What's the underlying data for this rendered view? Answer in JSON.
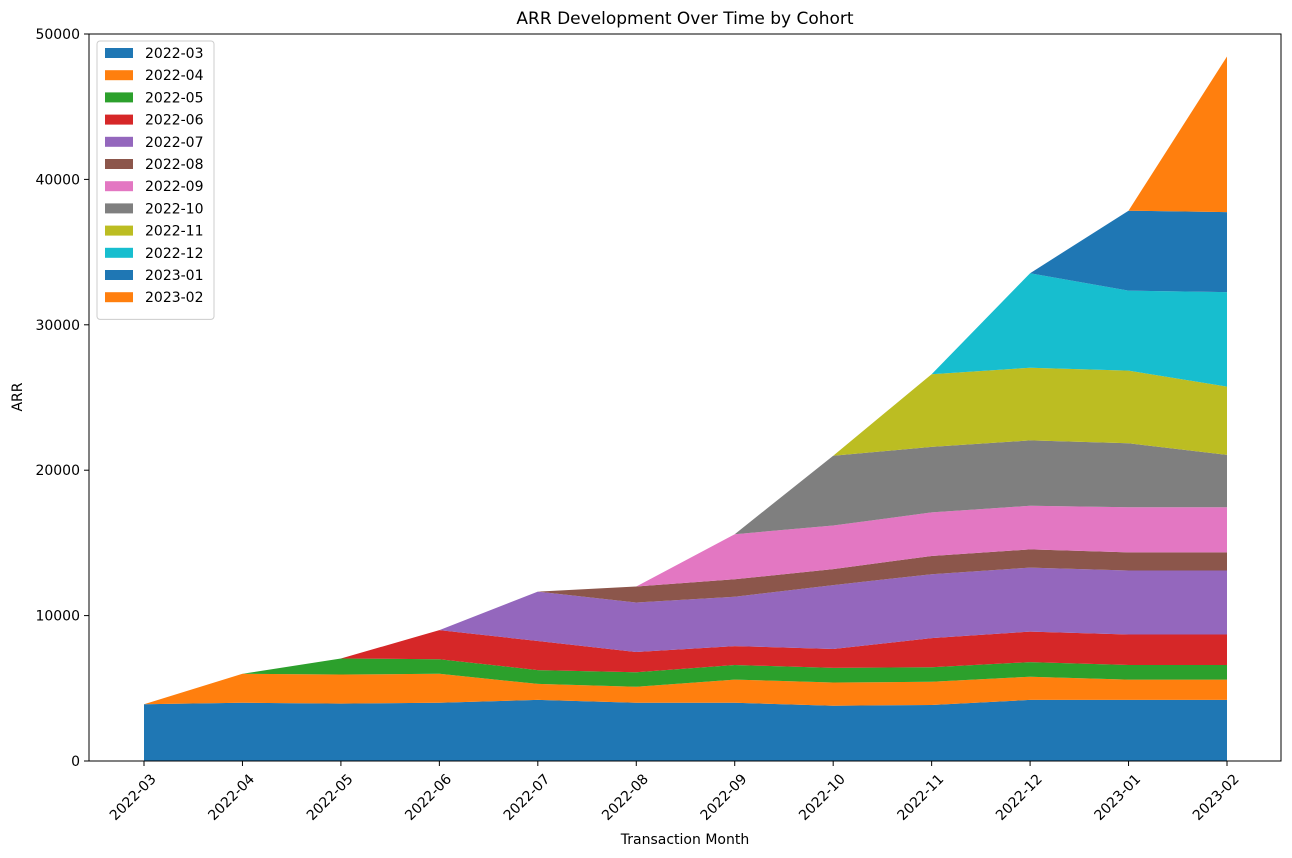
{
  "chart_data": {
    "type": "area",
    "stacked": true,
    "title": "ARR Development Over Time by Cohort",
    "xlabel": "Transaction Month",
    "ylabel": "ARR",
    "ylim": [
      0,
      50000
    ],
    "yticks": [
      0,
      10000,
      20000,
      30000,
      40000,
      50000
    ],
    "grid": false,
    "legend_position": "top-left",
    "x": [
      "2022-03",
      "2022-04",
      "2022-05",
      "2022-06",
      "2022-07",
      "2022-08",
      "2022-09",
      "2022-10",
      "2022-11",
      "2022-12",
      "2023-01",
      "2023-02"
    ],
    "series": [
      {
        "name": "2022-03",
        "color": "#1f77b4",
        "values": [
          3900,
          4000,
          3950,
          4000,
          4200,
          4000,
          4000,
          3800,
          3850,
          4200,
          4200,
          4200
        ]
      },
      {
        "name": "2022-04",
        "color": "#ff7f0e",
        "values": [
          0,
          2000,
          2000,
          2000,
          1100,
          1100,
          1600,
          1600,
          1600,
          1600,
          1400,
          1400
        ]
      },
      {
        "name": "2022-05",
        "color": "#2ca02c",
        "values": [
          0,
          0,
          1100,
          1000,
          950,
          1000,
          1000,
          1000,
          1000,
          1000,
          1000,
          1000
        ]
      },
      {
        "name": "2022-06",
        "color": "#d62728",
        "values": [
          0,
          0,
          0,
          2000,
          2000,
          1400,
          1300,
          1300,
          2000,
          2100,
          2100,
          2100
        ]
      },
      {
        "name": "2022-07",
        "color": "#9467bd",
        "values": [
          0,
          0,
          0,
          0,
          3400,
          3400,
          3400,
          4400,
          4400,
          4400,
          4400,
          4400
        ]
      },
      {
        "name": "2022-08",
        "color": "#8c564b",
        "values": [
          0,
          0,
          0,
          0,
          0,
          1100,
          1200,
          1100,
          1250,
          1250,
          1250,
          1250
        ]
      },
      {
        "name": "2022-09",
        "color": "#e377c2",
        "values": [
          0,
          0,
          0,
          0,
          0,
          0,
          3100,
          3000,
          3000,
          3000,
          3100,
          3100
        ]
      },
      {
        "name": "2022-10",
        "color": "#7f7f7f",
        "values": [
          0,
          0,
          0,
          0,
          0,
          0,
          0,
          4800,
          4500,
          4500,
          4400,
          3600
        ]
      },
      {
        "name": "2022-11",
        "color": "#bcbd22",
        "values": [
          0,
          0,
          0,
          0,
          0,
          0,
          0,
          0,
          5000,
          5000,
          5000,
          4700
        ]
      },
      {
        "name": "2022-12",
        "color": "#17becf",
        "values": [
          0,
          0,
          0,
          0,
          0,
          0,
          0,
          0,
          0,
          6500,
          5500,
          6500
        ]
      },
      {
        "name": "2023-01",
        "color": "#1f77b4",
        "values": [
          0,
          0,
          0,
          0,
          0,
          0,
          0,
          0,
          0,
          0,
          5500,
          5500
        ]
      },
      {
        "name": "2023-02",
        "color": "#ff7f0e",
        "values": [
          0,
          0,
          0,
          0,
          0,
          0,
          0,
          0,
          0,
          0,
          0,
          10700
        ]
      }
    ]
  }
}
